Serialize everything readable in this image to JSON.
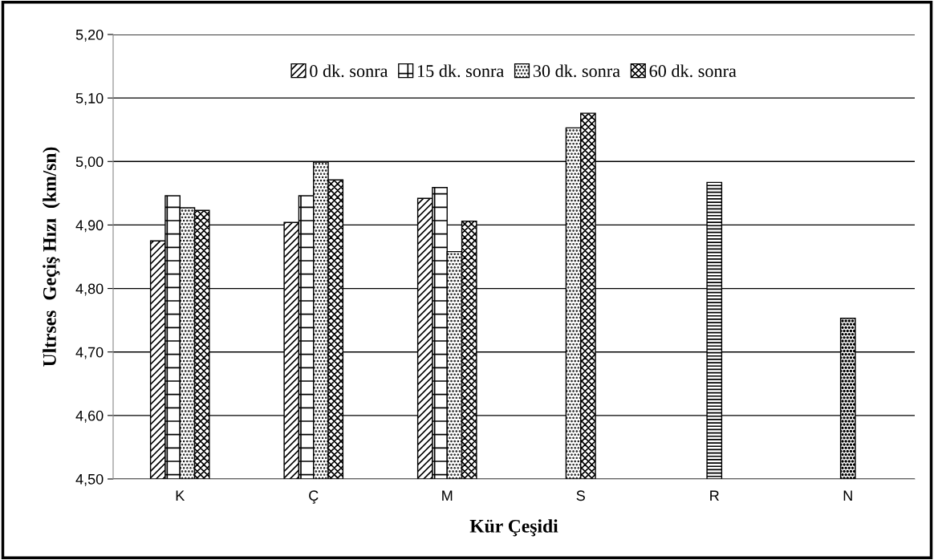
{
  "chart_data": {
    "type": "bar",
    "xlabel": "Kür Çeşidi",
    "ylabel": "Ultrses  Geçiş Hızı  (km/sn)",
    "categories": [
      "K",
      "Ç",
      "M",
      "S",
      "R",
      "N"
    ],
    "series": [
      {
        "name": "0 dk. sonra",
        "color": "#000000",
        "values": [
          4.875,
          4.904,
          4.942,
          null,
          null,
          null
        ]
      },
      {
        "name": "15 dk. sonra",
        "color": "#000000",
        "values": [
          4.946,
          4.946,
          4.959,
          null,
          null,
          null
        ]
      },
      {
        "name": "30 dk. sonra",
        "color": "#000000",
        "values": [
          4.927,
          4.999,
          4.858,
          5.053,
          null,
          null
        ]
      },
      {
        "name": "60 dk. sonra",
        "color": "#000000",
        "values": [
          4.923,
          4.971,
          4.906,
          5.076,
          null,
          null
        ]
      },
      {
        "color": "#000000",
        "values": [
          null,
          null,
          null,
          null,
          4.967,
          null
        ]
      },
      {
        "color": "#000000",
        "values": [
          null,
          null,
          null,
          null,
          null,
          4.753
        ]
      }
    ],
    "ylim": [
      4.5,
      5.2
    ],
    "yticks": [
      {
        "value": 4.5,
        "label": "4,50"
      },
      {
        "value": 4.6,
        "label": "4,60"
      },
      {
        "value": 4.7,
        "label": "4,70"
      },
      {
        "value": 4.8,
        "label": "4,80"
      },
      {
        "value": 4.9,
        "label": "4,90"
      },
      {
        "value": 5.0,
        "label": "5,00"
      },
      {
        "value": 5.1,
        "label": "5,10"
      },
      {
        "value": 5.2,
        "label": "5,20"
      }
    ],
    "grid": "y",
    "legend": "top"
  }
}
